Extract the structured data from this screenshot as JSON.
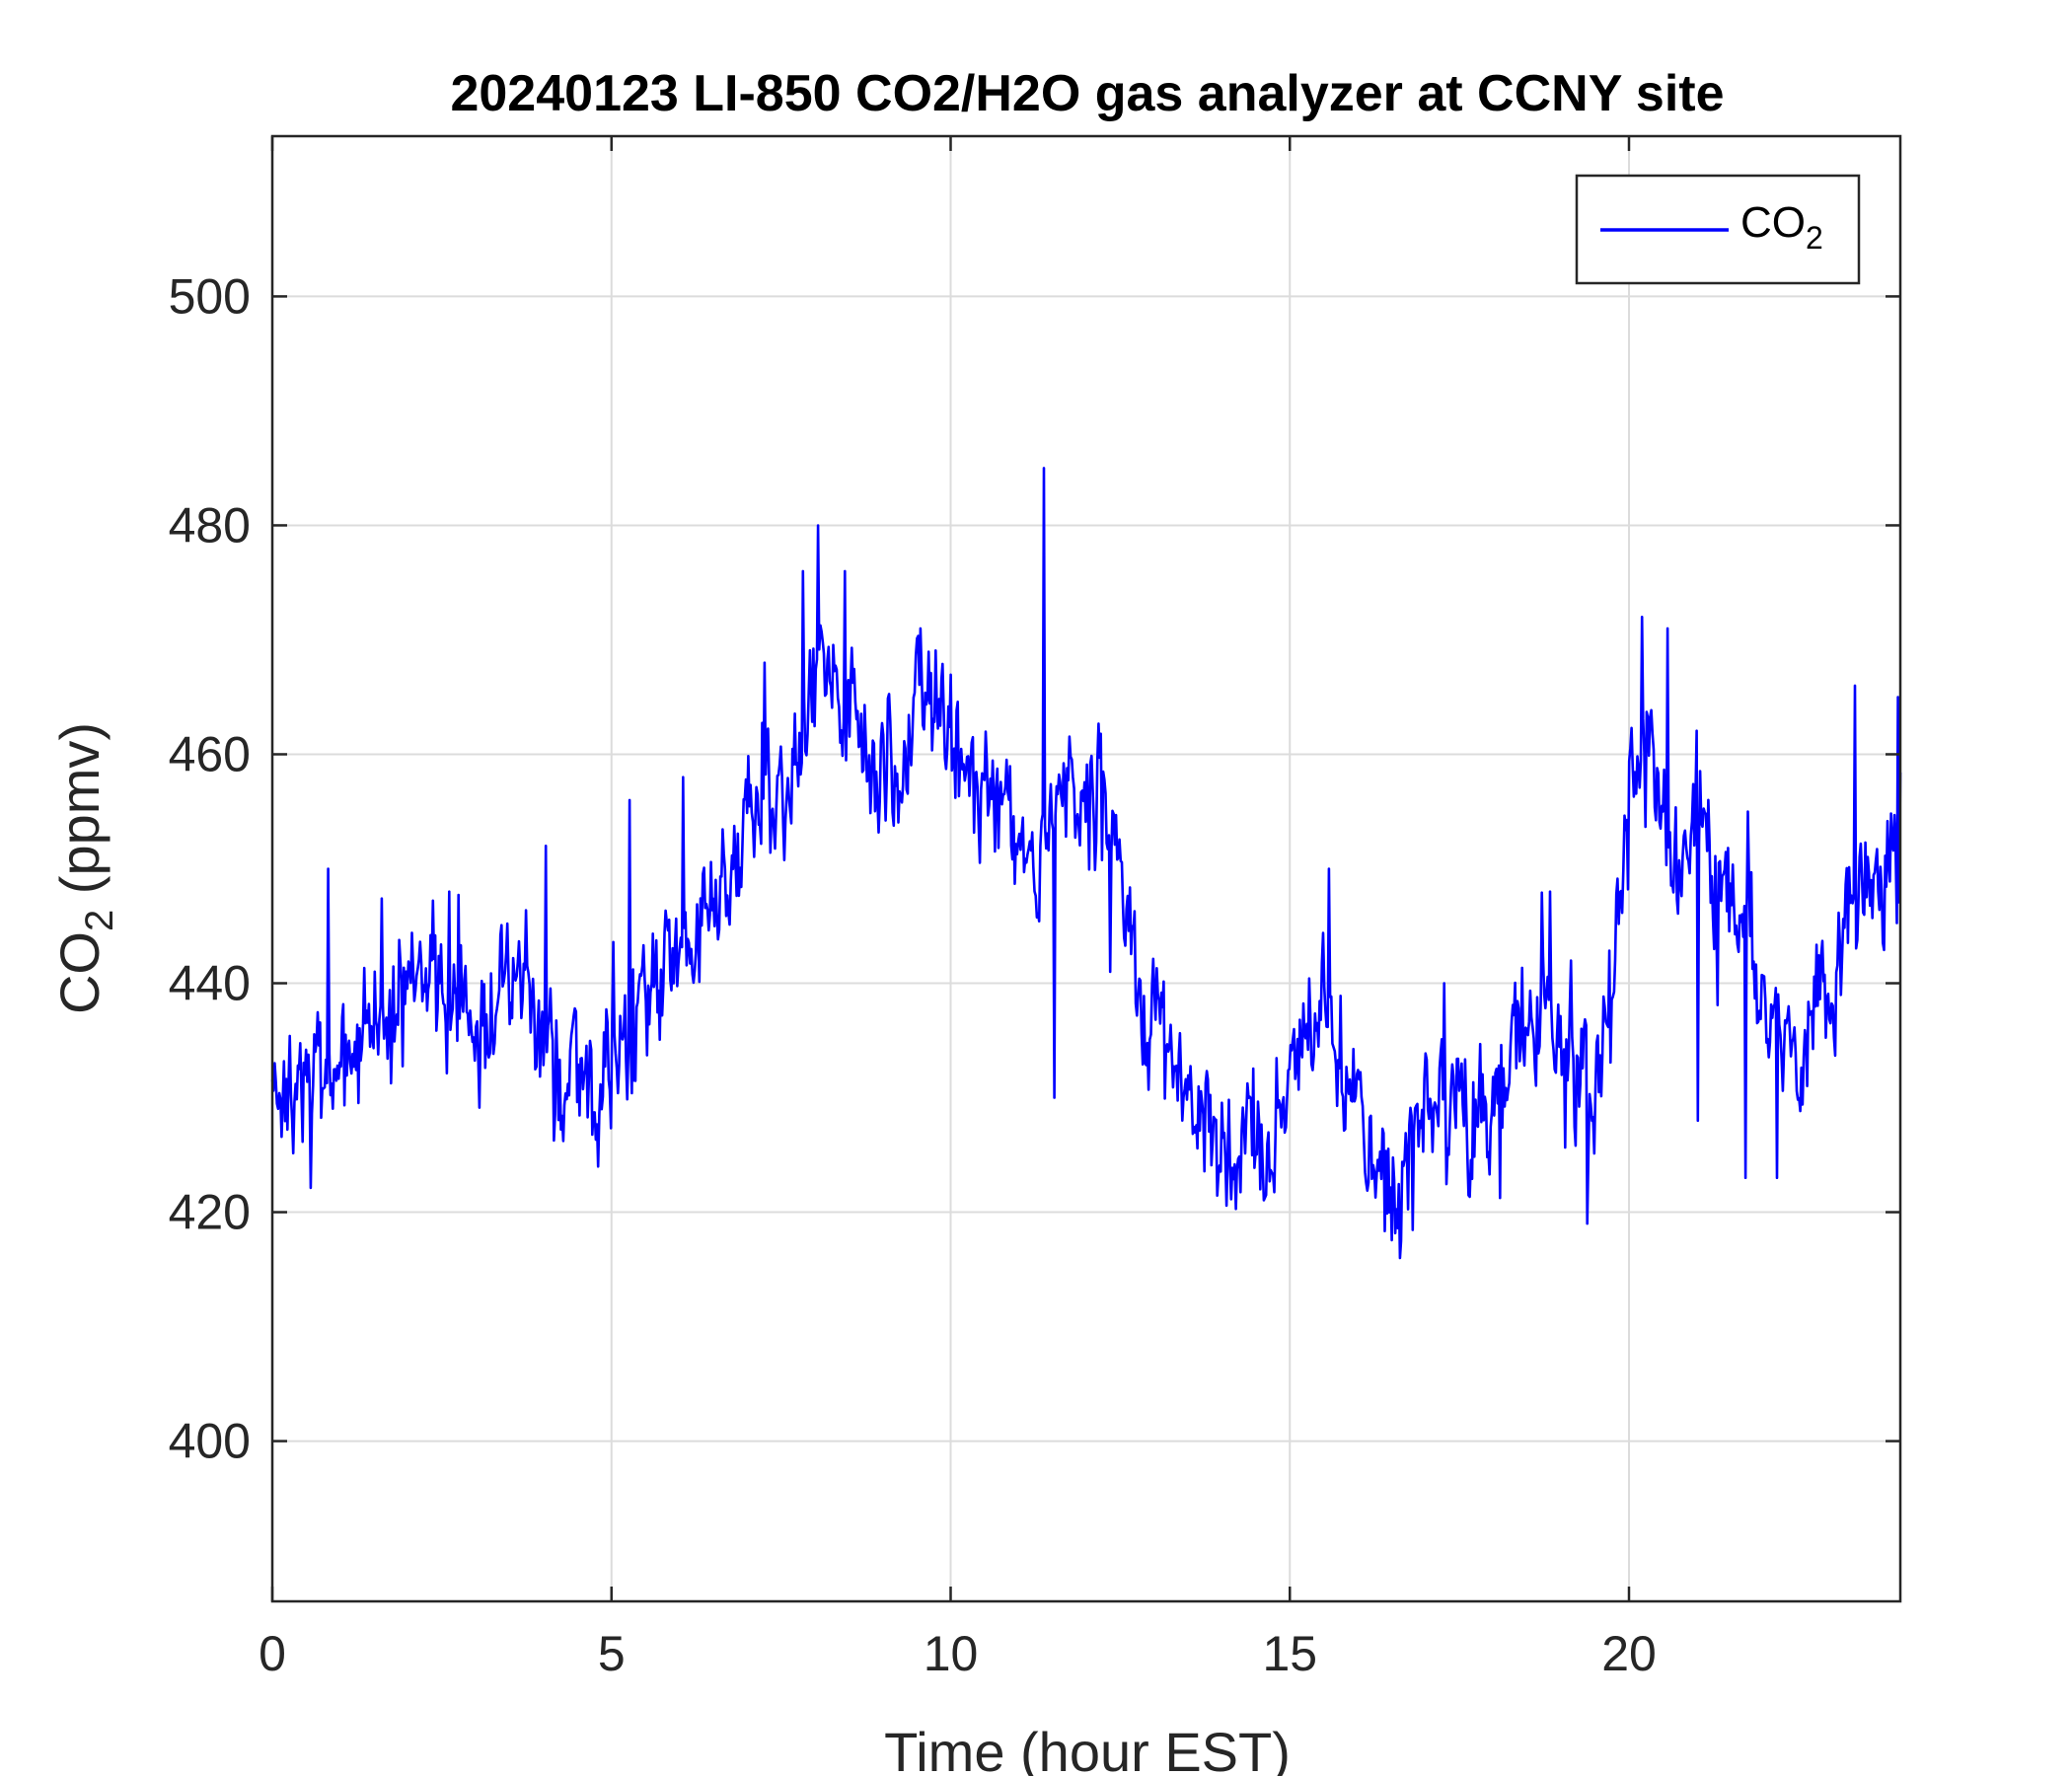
{
  "chart_data": {
    "type": "line",
    "title": "20240123 LI-850 CO2/H2O gas analyzer at CCNY site",
    "xlabel": "Time (hour EST)",
    "ylabel": {
      "main": "CO",
      "sub": "2",
      "rest": " (ppmv)"
    },
    "xlim": [
      0,
      24
    ],
    "ylim": [
      386,
      514
    ],
    "xticks": [
      0,
      5,
      10,
      15,
      20
    ],
    "yticks": [
      400,
      420,
      440,
      460,
      480,
      500
    ],
    "xtick_labels": [
      "0",
      "5",
      "10",
      "15",
      "20"
    ],
    "ytick_labels": [
      "400",
      "420",
      "440",
      "460",
      "480",
      "500"
    ],
    "grid": true,
    "legend": {
      "position": "top-right",
      "entries": [
        {
          "main": "CO",
          "sub": "2"
        }
      ]
    },
    "series": [
      {
        "color": "#0000ff",
        "noise_scale": 4,
        "x": [
          0,
          0.25,
          0.5,
          0.75,
          1.0,
          1.25,
          1.5,
          1.75,
          2.0,
          2.25,
          2.5,
          2.75,
          3.0,
          3.25,
          3.5,
          3.75,
          4.0,
          4.25,
          4.5,
          4.75,
          5.0,
          5.25,
          5.5,
          5.75,
          6.0,
          6.25,
          6.5,
          6.75,
          7.0,
          7.25,
          7.5,
          7.75,
          8.0,
          8.25,
          8.5,
          8.75,
          9.0,
          9.25,
          9.5,
          9.75,
          10.0,
          10.25,
          10.5,
          10.75,
          11.0,
          11.25,
          11.5,
          11.75,
          12.0,
          12.25,
          12.5,
          12.75,
          13.0,
          13.25,
          13.5,
          13.75,
          14.0,
          14.25,
          14.5,
          14.75,
          15.0,
          15.25,
          15.5,
          15.75,
          16.0,
          16.25,
          16.5,
          16.75,
          17.0,
          17.25,
          17.5,
          17.75,
          18.0,
          18.25,
          18.5,
          18.75,
          19.0,
          19.25,
          19.5,
          19.75,
          20.0,
          20.25,
          20.5,
          20.75,
          21.0,
          21.25,
          21.5,
          21.75,
          22.0,
          22.25,
          22.5,
          22.75,
          23.0,
          23.25,
          23.5,
          23.75,
          24.0
        ],
        "y": [
          432,
          430,
          431,
          432,
          433,
          434,
          436,
          437,
          438,
          439,
          440,
          439,
          438,
          439,
          438,
          437,
          435,
          433,
          431,
          432,
          434,
          436,
          438,
          440,
          443,
          445,
          447,
          450,
          455,
          456,
          455,
          460,
          468,
          469,
          466,
          460,
          458,
          459,
          464,
          465,
          462,
          458,
          456,
          455,
          452,
          448,
          455,
          459,
          458,
          455,
          447,
          440,
          436,
          434,
          432,
          430,
          426,
          425,
          427,
          428,
          432,
          435,
          437,
          434,
          430,
          426,
          420,
          424,
          428,
          430,
          429,
          427,
          430,
          433,
          436,
          438,
          437,
          433,
          430,
          438,
          459,
          461,
          455,
          452,
          456,
          450,
          446,
          444,
          440,
          438,
          435,
          440,
          438,
          445,
          450,
          447,
          452
        ]
      }
    ],
    "spikes": [
      [
        0.82,
        450
      ],
      [
        2.6,
        448
      ],
      [
        4.04,
        452
      ],
      [
        5.27,
        456
      ],
      [
        6.05,
        458
      ],
      [
        7.25,
        468
      ],
      [
        7.83,
        476
      ],
      [
        8.05,
        480
      ],
      [
        8.44,
        476
      ],
      [
        9.56,
        471
      ],
      [
        11.37,
        485
      ],
      [
        11.52,
        430
      ],
      [
        12.35,
        441
      ],
      [
        13.42,
        428
      ],
      [
        14.57,
        422
      ],
      [
        15.57,
        450
      ],
      [
        16.62,
        416
      ],
      [
        17.28,
        440
      ],
      [
        18.83,
        448
      ],
      [
        19.38,
        419
      ],
      [
        20.2,
        472
      ],
      [
        20.57,
        471
      ],
      [
        21.02,
        428
      ],
      [
        21.75,
        455
      ],
      [
        21.72,
        423
      ],
      [
        22.19,
        423
      ],
      [
        23.33,
        466
      ],
      [
        23.97,
        465
      ]
    ]
  }
}
